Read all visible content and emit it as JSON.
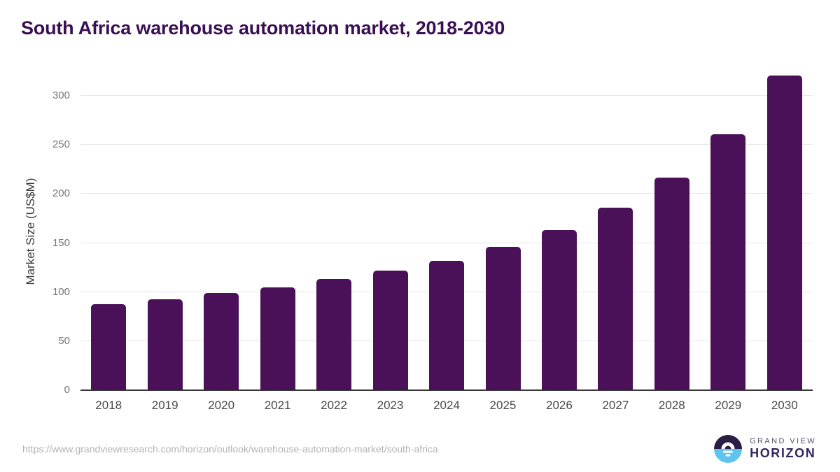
{
  "chart_data": {
    "type": "bar",
    "title": "South Africa warehouse automation market, 2018-2030",
    "ylabel": "Market Size (US$M)",
    "xlabel": "",
    "categories": [
      "2018",
      "2019",
      "2020",
      "2021",
      "2022",
      "2023",
      "2024",
      "2025",
      "2026",
      "2027",
      "2028",
      "2029",
      "2030"
    ],
    "values": [
      88,
      93,
      99,
      105,
      113,
      122,
      132,
      146,
      163,
      186,
      217,
      261,
      321
    ],
    "ylim": [
      0,
      325
    ],
    "yticks": [
      0,
      50,
      100,
      150,
      200,
      250,
      300
    ],
    "grid": "horizontal",
    "legend": "none",
    "bar_color": "#4a1159"
  },
  "footer": {
    "source_url": "https://www.grandviewresearch.com/horizon/outlook/warehouse-automation-market/south-africa",
    "logo": {
      "line1": "GRAND VIEW",
      "line2": "HORIZON"
    }
  },
  "colors": {
    "bar": "#4a1159",
    "title": "#3a0f53",
    "gridline": "#e7e7e7",
    "axis_line": "#3a3a3a",
    "tick_label": "#767676",
    "x_label": "#4a4a4a",
    "axis_title": "#3d3d3d",
    "url_text": "#b3b3b3",
    "logo_dark_half": "#2a1e45",
    "logo_blue_half": "#5ec3ef"
  }
}
